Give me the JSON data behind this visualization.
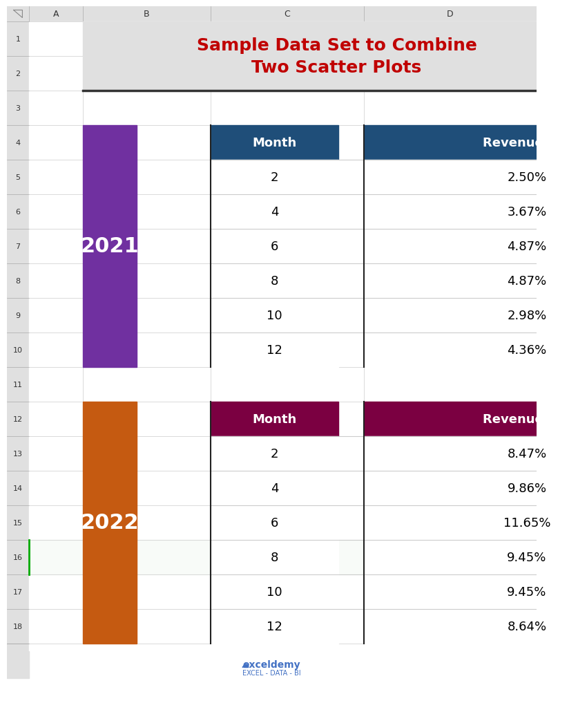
{
  "title": "Sample Data Set to Combine\nTwo Scatter Plots",
  "title_color": "#C00000",
  "title_bg_color": "#E0E0E0",
  "title_fontsize": 18,
  "table1_year": "2021",
  "table1_year_bg": "#7030A0",
  "table1_header_bg": "#1F4E79",
  "table1_months": [
    2,
    4,
    6,
    8,
    10,
    12
  ],
  "table1_revenues": [
    "2.50%",
    "3.67%",
    "4.87%",
    "4.87%",
    "2.98%",
    "4.36%"
  ],
  "table2_year": "2022",
  "table2_year_bg": "#C55A11",
  "table2_header_bg": "#7B0041",
  "table2_months": [
    2,
    4,
    6,
    8,
    10,
    12
  ],
  "table2_revenues": [
    "8.47%",
    "9.86%",
    "11.65%",
    "9.45%",
    "9.45%",
    "8.64%"
  ],
  "header_text_color": "#FFFFFF",
  "cell_text_color": "#000000",
  "cell_bg_color": "#FFFFFF",
  "border_color": "#000000",
  "row_line_color": "#AAAAAA",
  "col_labels": [
    "Month",
    "Revenue (%)"
  ],
  "excel_bg": "#FFFFFF",
  "spreadsheet_bg": "#F2F2F2",
  "row_header_bg": "#E0E0E0",
  "col_header_bg": "#E0E0E0",
  "col_header_letters": [
    "A",
    "B",
    "C",
    "D",
    ""
  ],
  "row_numbers": [
    "1",
    "2",
    "3",
    "4",
    "5",
    "6",
    "7",
    "8",
    "9",
    "10",
    "11",
    "12",
    "13",
    "14",
    "15",
    "16",
    "17",
    "18",
    ""
  ],
  "watermark_text": "exceldemy",
  "watermark_sub": "EXCEL - DATA - BI",
  "watermark_color": "#4472C4"
}
